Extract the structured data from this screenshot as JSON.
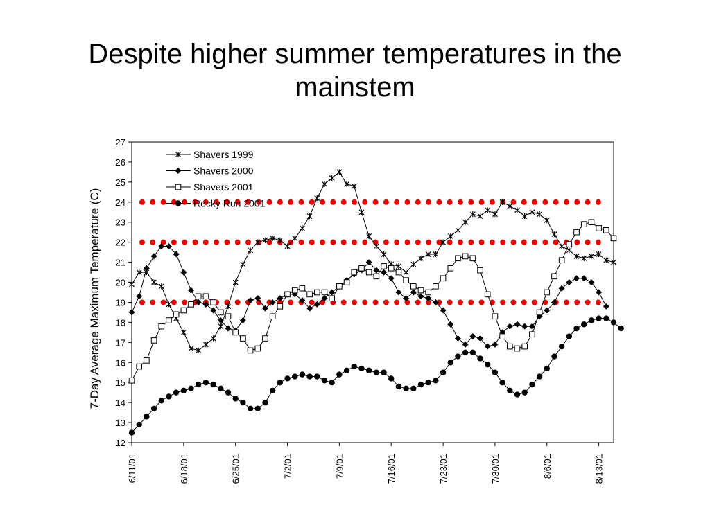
{
  "slide": {
    "title": "Despite higher summer temperatures in the mainstem"
  },
  "chart_data": {
    "type": "line",
    "title": "",
    "xlabel": "",
    "ylabel": "7-Day Average Maximum Temperature (C)",
    "ylim": [
      12,
      27
    ],
    "yticks": [
      "12",
      "13",
      "14",
      "15",
      "16",
      "17",
      "18",
      "19",
      "20",
      "21",
      "22",
      "23",
      "24",
      "25",
      "26",
      "27"
    ],
    "x_start": "6/11/01",
    "x_tick_labels": [
      "6/11/01",
      "6/18/01",
      "6/25/01",
      "7/2/01",
      "7/9/01",
      "7/16/01",
      "7/23/01",
      "7/30/01",
      "8/6/01",
      "8/13/01"
    ],
    "x_tick_day_offsets": [
      0,
      7,
      14,
      21,
      28,
      35,
      42,
      49,
      56,
      63
    ],
    "reference_lines": [
      {
        "y": 24,
        "color": "#e60000",
        "style": "dotted"
      },
      {
        "y": 22,
        "color": "#e60000",
        "style": "dotted"
      },
      {
        "y": 19,
        "color": "#e60000",
        "style": "dotted"
      }
    ],
    "series": [
      {
        "name": "Shavers 1999",
        "marker": "star",
        "color": "#000000",
        "values": [
          19.9,
          20.5,
          20.5,
          20.0,
          19.8,
          18.9,
          18.2,
          17.5,
          16.7,
          16.6,
          16.9,
          17.2,
          17.8,
          18.8,
          20.0,
          20.9,
          21.6,
          22.0,
          22.1,
          22.2,
          22.1,
          21.8,
          22.2,
          22.7,
          23.3,
          24.2,
          24.9,
          25.2,
          25.5,
          24.9,
          24.8,
          23.5,
          22.3,
          21.8,
          21.4,
          20.9,
          20.8,
          20.5,
          20.9,
          21.2,
          21.4,
          21.4,
          22.0,
          22.3,
          22.6,
          23.0,
          23.4,
          23.3,
          23.6,
          23.4,
          24.0,
          23.8,
          23.6,
          23.3,
          23.5,
          23.4,
          23.1,
          22.4,
          21.8,
          21.6,
          21.3,
          21.2,
          21.3,
          21.4,
          21.1,
          21.0
        ]
      },
      {
        "name": "Shavers 2000",
        "marker": "diamond",
        "color": "#000000",
        "values": [
          18.5,
          19.3,
          20.7,
          21.3,
          21.8,
          21.8,
          21.4,
          20.5,
          19.6,
          19.0,
          18.9,
          18.6,
          18.1,
          17.7,
          17.6,
          18.1,
          19.1,
          19.2,
          18.7,
          19.0,
          19.2,
          19.4,
          19.4,
          19.1,
          18.7,
          18.9,
          19.2,
          19.5,
          19.8,
          20.1,
          20.4,
          20.6,
          21.0,
          20.6,
          20.5,
          20.2,
          19.5,
          19.2,
          19.5,
          19.3,
          19.2,
          19.0,
          18.6,
          17.9,
          17.2,
          16.9,
          17.3,
          17.2,
          16.8,
          16.9,
          17.5,
          17.8,
          17.9,
          17.8,
          17.8,
          18.3,
          18.6,
          19.0,
          19.7,
          20.0,
          20.2,
          20.2,
          20.0,
          19.5,
          18.8
        ]
      },
      {
        "name": "Shavers 2001",
        "marker": "square",
        "color": "#000000",
        "values": [
          15.1,
          15.8,
          16.1,
          17.1,
          17.8,
          18.1,
          18.4,
          18.6,
          18.9,
          19.3,
          19.3,
          19.0,
          18.5,
          18.3,
          17.5,
          17.2,
          16.6,
          16.7,
          17.2,
          18.3,
          18.8,
          19.4,
          19.6,
          19.7,
          19.4,
          19.5,
          19.5,
          19.2,
          19.8,
          20.0,
          20.5,
          20.7,
          20.5,
          20.3,
          20.8,
          20.7,
          20.5,
          20.1,
          19.8,
          19.6,
          19.5,
          19.8,
          20.2,
          20.7,
          21.2,
          21.3,
          21.2,
          20.6,
          19.4,
          18.3,
          17.3,
          16.8,
          16.7,
          16.8,
          17.4,
          18.5,
          19.5,
          20.3,
          21.1,
          21.9,
          22.5,
          22.9,
          23.0,
          22.7,
          22.6,
          22.2
        ]
      },
      {
        "name": "Rocky Run 2001",
        "marker": "circle",
        "color": "#000000",
        "values": [
          12.5,
          12.9,
          13.3,
          13.7,
          14.1,
          14.3,
          14.5,
          14.6,
          14.7,
          14.9,
          15.0,
          14.9,
          14.7,
          14.5,
          14.2,
          14.0,
          13.7,
          13.7,
          14.0,
          14.6,
          15.0,
          15.2,
          15.3,
          15.4,
          15.3,
          15.3,
          15.1,
          15.0,
          15.4,
          15.6,
          15.8,
          15.7,
          15.6,
          15.5,
          15.5,
          15.2,
          14.8,
          14.7,
          14.7,
          14.9,
          15.0,
          15.1,
          15.5,
          16.0,
          16.3,
          16.5,
          16.5,
          16.2,
          15.9,
          15.5,
          15.0,
          14.6,
          14.4,
          14.5,
          14.9,
          15.3,
          15.7,
          16.3,
          16.8,
          17.3,
          17.7,
          17.9,
          18.1,
          18.2,
          18.2,
          18.0,
          17.7
        ]
      }
    ]
  }
}
